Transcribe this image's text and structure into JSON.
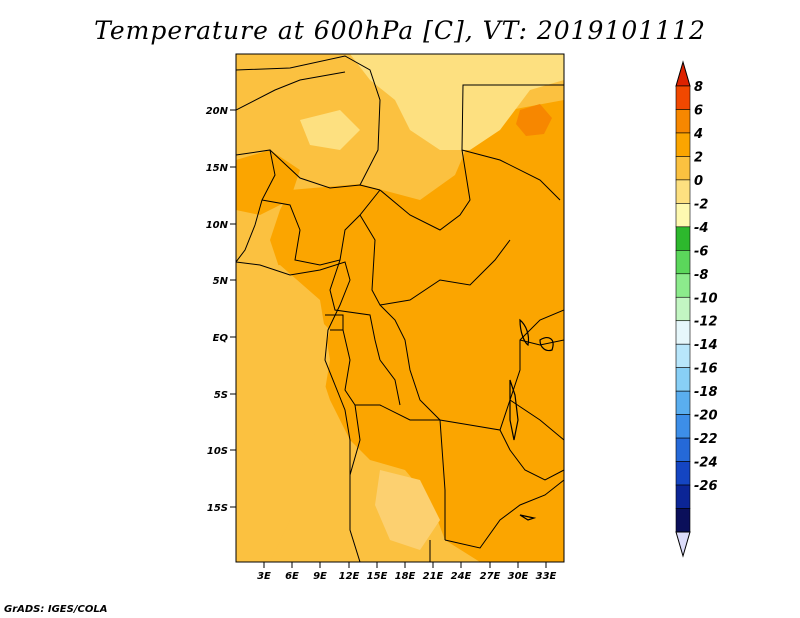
{
  "title": "Temperature at 600hPa [C], VT: 2019101112",
  "credit": "GrADS: IGES/COLA",
  "lat_ticks": [
    "20N",
    "15N",
    "10N",
    "5N",
    "EQ",
    "5S",
    "10S",
    "15S"
  ],
  "lon_ticks": [
    "3E",
    "6E",
    "9E",
    "12E",
    "15E",
    "18E",
    "21E",
    "24E",
    "27E",
    "30E",
    "33E"
  ],
  "colorbar": {
    "labels": [
      "8",
      "6",
      "4",
      "2",
      "0",
      "-2",
      "-4",
      "-6",
      "-8",
      "-10",
      "-12",
      "-14",
      "-16",
      "-18",
      "-20",
      "-22",
      "-24",
      "-26"
    ],
    "colors": [
      "#dd2200",
      "#f14800",
      "#f78700",
      "#fba500",
      "#fbc140",
      "#fde080",
      "#fef9b0",
      "#2db82d",
      "#5bd75b",
      "#8ceb8c",
      "#c3f6c3",
      "#e6f7fb",
      "#b8e6fb",
      "#88cff6",
      "#5aaeef",
      "#3d8ee8",
      "#2569d8",
      "#1445c2",
      "#0b2596",
      "#0a0f5a",
      "#dcdcfa"
    ]
  }
}
